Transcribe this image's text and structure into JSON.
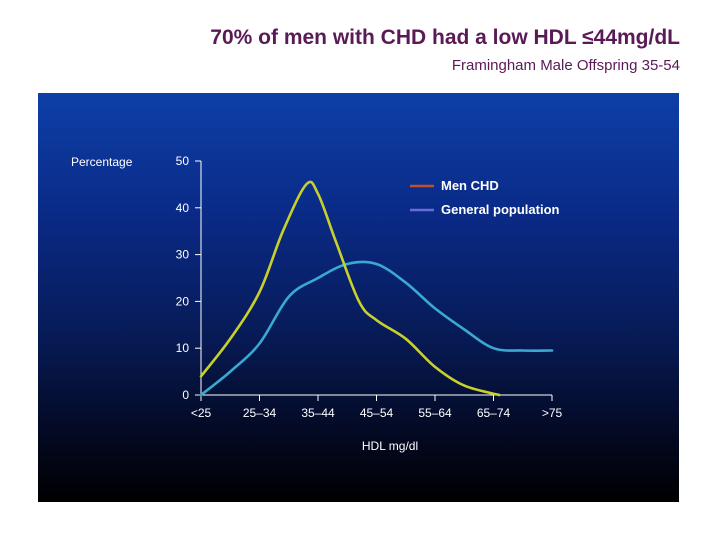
{
  "header": {
    "title": "70% of men with CHD had a low HDL ≤44mg/dL",
    "subtitle": "Framingham Male Offspring 35-54"
  },
  "chart_data": {
    "type": "line",
    "title": "70% of men with CHD had a low HDL ≤44mg/dL",
    "subtitle": "Framingham Male Offspring 35-54",
    "xlabel": "HDL mg/dl",
    "ylabel": "Percentage",
    "categories": [
      "<25",
      "25–34",
      "35–44",
      "45–54",
      "55–64",
      "65–74",
      ">75"
    ],
    "ylim": [
      0,
      50
    ],
    "yticks": [
      0,
      10,
      20,
      30,
      40,
      50
    ],
    "legend_position": "top-right",
    "series": [
      {
        "name": "Men CHD",
        "color": "#c8d12a",
        "legend_color": "#c0502a",
        "points": [
          [
            0,
            4
          ],
          [
            0.5,
            12
          ],
          [
            1,
            22
          ],
          [
            1.4,
            35
          ],
          [
            1.8,
            45
          ],
          [
            2,
            43
          ],
          [
            2.3,
            33
          ],
          [
            2.7,
            20
          ],
          [
            3,
            16
          ],
          [
            3.5,
            12
          ],
          [
            4,
            6
          ],
          [
            4.5,
            2
          ],
          [
            5.1,
            0
          ]
        ]
      },
      {
        "name": "General population",
        "color": "#3aa8d0",
        "legend_color": "#6a6ad8",
        "points": [
          [
            0,
            0
          ],
          [
            0.5,
            5
          ],
          [
            1,
            11
          ],
          [
            1.5,
            21
          ],
          [
            2,
            25
          ],
          [
            2.5,
            28
          ],
          [
            3,
            28
          ],
          [
            3.5,
            24
          ],
          [
            4,
            18.5
          ],
          [
            4.5,
            14
          ],
          [
            5,
            10
          ],
          [
            5.5,
            9.5
          ],
          [
            6,
            9.5
          ]
        ]
      }
    ]
  }
}
